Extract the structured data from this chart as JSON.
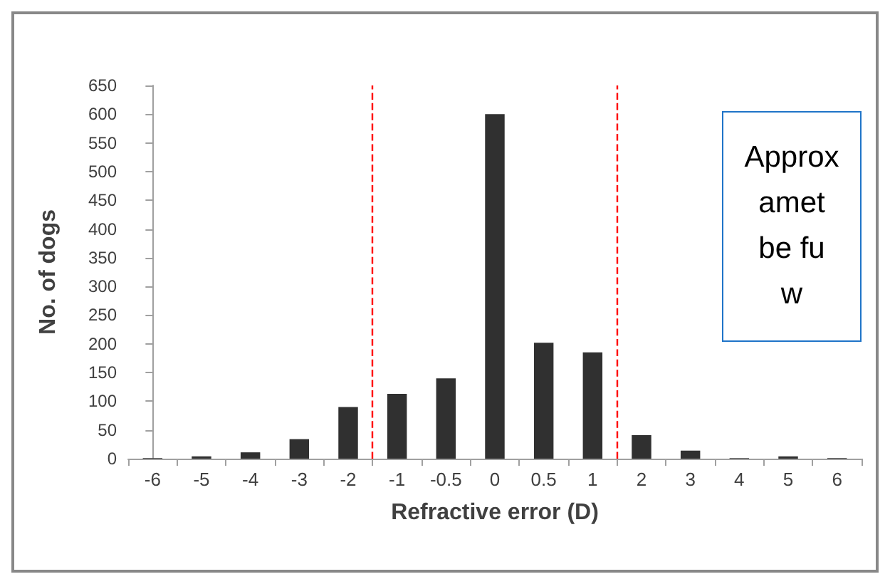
{
  "chart_data": {
    "type": "bar",
    "xlabel": "Refractive error (D)",
    "ylabel": "No. of dogs",
    "categories": [
      "-6",
      "-5",
      "-4",
      "-3",
      "-2",
      "-1",
      "-0.5",
      "0",
      "0.5",
      "1",
      "2",
      "3",
      "4",
      "5",
      "6"
    ],
    "values": [
      1,
      4,
      11,
      34,
      90,
      113,
      140,
      600,
      202,
      185,
      41,
      14,
      1,
      4,
      1
    ],
    "color": "#303030",
    "ylim": [
      0,
      650
    ],
    "yticks": [
      0,
      50,
      100,
      150,
      200,
      250,
      300,
      350,
      400,
      450,
      500,
      550,
      600,
      650
    ],
    "grid": false,
    "annotations": [
      "Approx\namet\nbe fu\nw"
    ]
  }
}
